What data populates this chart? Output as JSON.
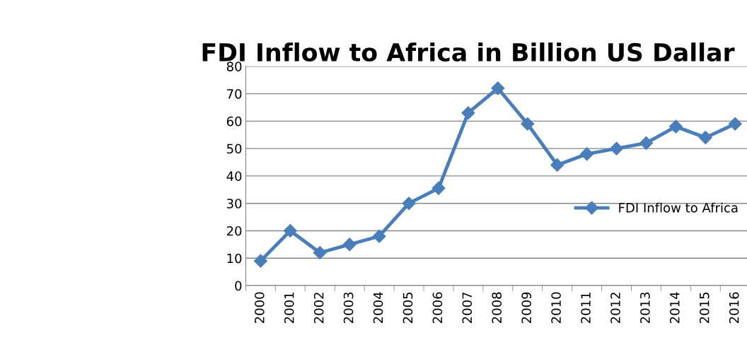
{
  "chart_data": {
    "type": "line",
    "title": "FDI Inflow to Africa in Billion US Dallar",
    "categories": [
      "2000",
      "2001",
      "2002",
      "2003",
      "2004",
      "2005",
      "2006",
      "2007",
      "2008",
      "2009",
      "2010",
      "2011",
      "2012",
      "2013",
      "2014",
      "2015",
      "2016"
    ],
    "series": [
      {
        "name": "FDI Inflow to Africa",
        "color": "#4a7ebb",
        "values": [
          9,
          20,
          12,
          15,
          18,
          30,
          35.5,
          63,
          72,
          59,
          44,
          48,
          50,
          52,
          58,
          54,
          59
        ]
      }
    ],
    "ylim": [
      0,
      80
    ],
    "yticks": [
      0,
      10,
      20,
      30,
      40,
      50,
      60,
      70,
      80
    ],
    "grid": "y",
    "legend": "right",
    "marker": "diamond",
    "line_style": "solid"
  }
}
